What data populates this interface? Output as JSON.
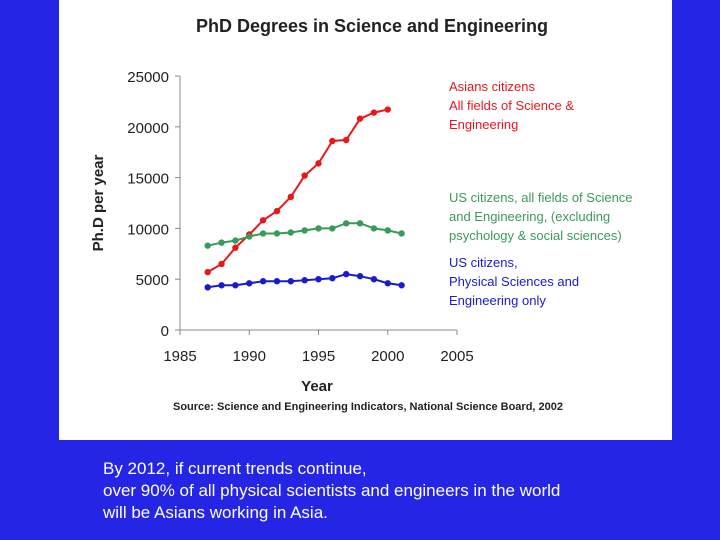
{
  "chart_data": {
    "type": "line",
    "title": "PhD Degrees in Science and Engineering",
    "xlabel": "Year",
    "ylabel": "Ph.D per year",
    "xlim": [
      1985,
      2005
    ],
    "ylim": [
      0,
      25000
    ],
    "x_ticks": [
      "1985",
      "1990",
      "1995",
      "2000",
      "2005"
    ],
    "y_ticks": [
      "0",
      "5000",
      "10000",
      "15000",
      "20000",
      "25000"
    ],
    "grid": false,
    "legend": "right",
    "source": "Source: Science and Engineering Indicators, National Science Board, 2002",
    "series": [
      {
        "name": "Asians citizens All fields of Science & Engineering",
        "label_lines": [
          "Asians citizens",
          "All fields of Science &",
          "Engineering"
        ],
        "color": "#e8171c",
        "x": [
          1987,
          1988,
          1989,
          1990,
          1991,
          1992,
          1993,
          1994,
          1995,
          1996,
          1997,
          1998,
          1999,
          2000
        ],
        "values": [
          5700,
          6500,
          8100,
          9400,
          10800,
          11700,
          13100,
          15200,
          16400,
          18600,
          18700,
          20800,
          21400,
          21700
        ]
      },
      {
        "name": "US citizens, all fields of Science and Engineering, (excluding psychology & social sciences)",
        "label_lines": [
          "US citizens, all fields of Science",
          "and Engineering, (excluding",
          "psychology & social sciences)"
        ],
        "color": "#3a9a5b",
        "x": [
          1987,
          1988,
          1989,
          1990,
          1991,
          1992,
          1993,
          1994,
          1995,
          1996,
          1997,
          1998,
          1999,
          2000,
          2001
        ],
        "values": [
          8300,
          8600,
          8800,
          9200,
          9500,
          9500,
          9600,
          9800,
          10000,
          10000,
          10500,
          10500,
          10000,
          9800,
          9500
        ]
      },
      {
        "name": "US citizens, Physical Sciences and Engineering only",
        "label_lines": [
          "US citizens,",
          "Physical Sciences and",
          "Engineering only"
        ],
        "color": "#1a1ad1",
        "x": [
          1987,
          1988,
          1989,
          1990,
          1991,
          1992,
          1993,
          1994,
          1995,
          1996,
          1997,
          1998,
          1999,
          2000,
          2001
        ],
        "values": [
          4200,
          4400,
          4400,
          4600,
          4800,
          4800,
          4800,
          4900,
          5000,
          5100,
          5500,
          5300,
          5000,
          4600,
          4400
        ]
      }
    ]
  },
  "caption": {
    "lines": [
      "By 2012, if current trends continue,",
      "over 90% of all physical scientists and engineers in the world",
      "will be Asians working in Asia."
    ]
  }
}
